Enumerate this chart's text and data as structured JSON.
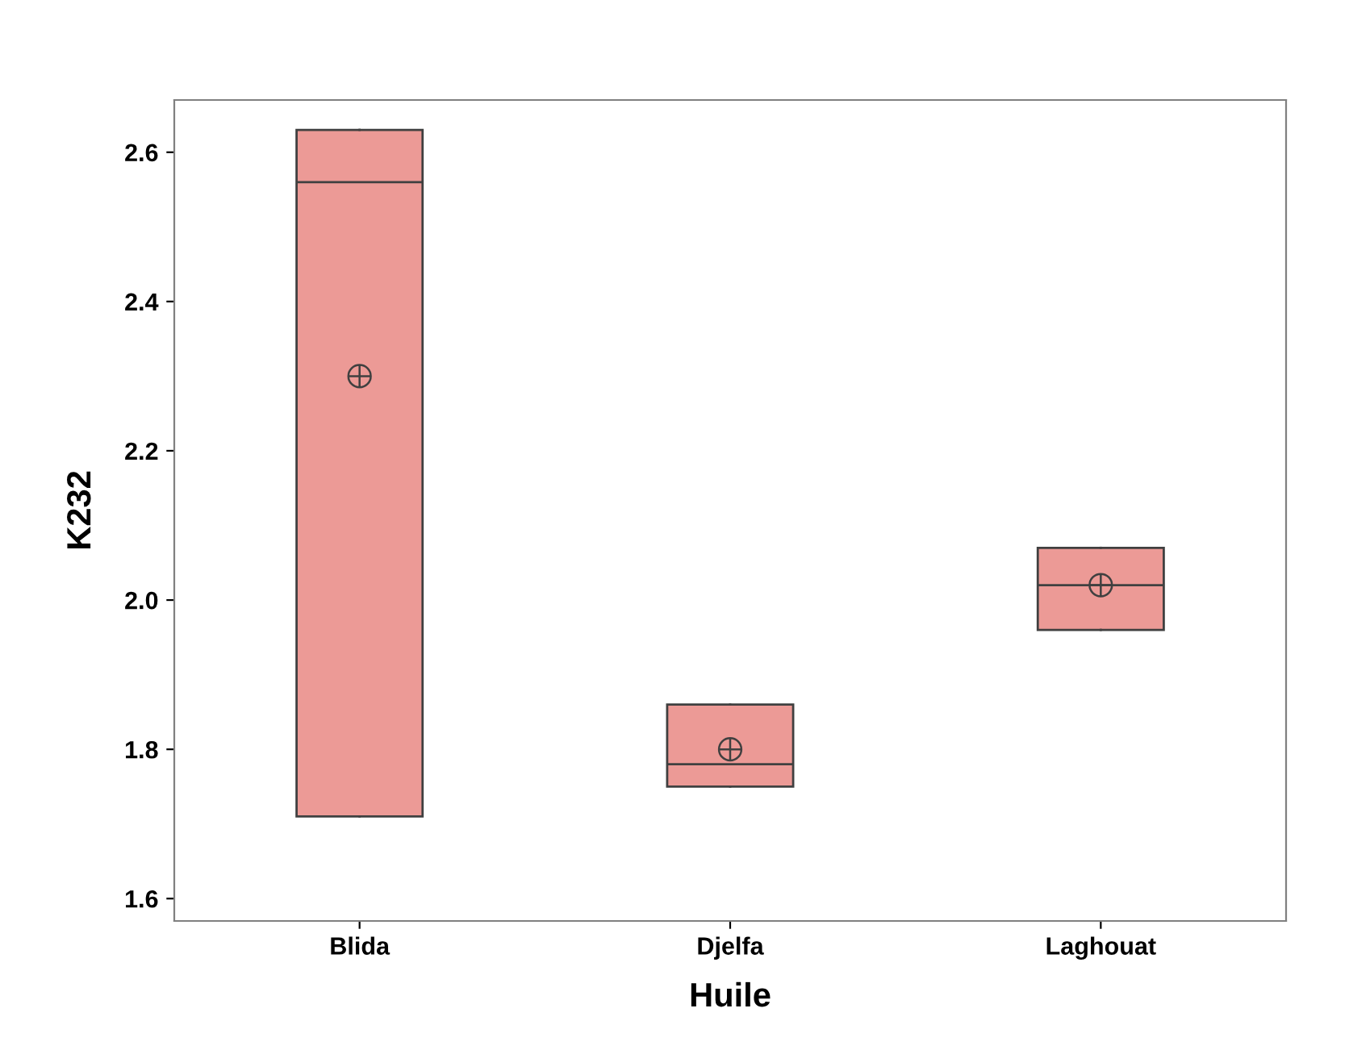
{
  "chart_data": {
    "type": "box",
    "categories": [
      "Blida",
      "Djelfa",
      "Laghouat"
    ],
    "boxes": [
      {
        "low": 1.71,
        "q1": 1.71,
        "median": 2.56,
        "q3": 2.63,
        "high": 2.63,
        "mean": 2.3
      },
      {
        "low": 1.75,
        "q1": 1.75,
        "median": 1.78,
        "q3": 1.86,
        "high": 1.86,
        "mean": 1.8
      },
      {
        "low": 1.96,
        "q1": 1.96,
        "median": 2.02,
        "q3": 2.07,
        "high": 2.07,
        "mean": 2.02
      }
    ],
    "color": "#ec9a96",
    "xlabel": "Huile",
    "ylabel": "K232",
    "ylim": [
      1.57,
      2.67
    ],
    "yticks": [
      1.6,
      1.8,
      {
        "value": 2,
        "label": "2.0"
      },
      2.2,
      2.4,
      2.6
    ],
    "grid": false,
    "legend": false
  }
}
